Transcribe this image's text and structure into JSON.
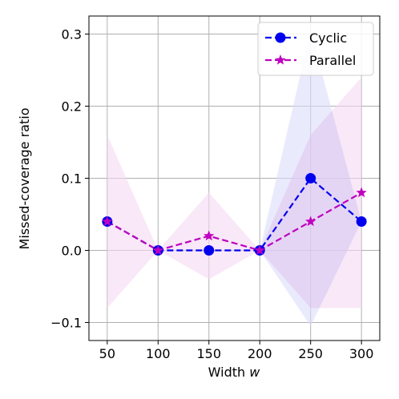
{
  "chart_data": {
    "type": "line",
    "xlabel": "Width ",
    "xlabel_var": "w",
    "ylabel": "Missed-coverage ratio",
    "xlim": [
      32,
      318
    ],
    "ylim": [
      -0.125,
      0.325
    ],
    "xticks": [
      50,
      100,
      150,
      200,
      250,
      300
    ],
    "xtick_labels": [
      "50",
      "100",
      "150",
      "200",
      "250",
      "300"
    ],
    "yticks": [
      -0.1,
      0.0,
      0.1,
      0.2,
      0.3
    ],
    "ytick_labels": [
      "−0.1",
      "0.0",
      "0.1",
      "0.2",
      "0.3"
    ],
    "grid": true,
    "legend_position": "top-right",
    "x": [
      50,
      100,
      150,
      200,
      250,
      300
    ],
    "series": [
      {
        "name": "Cyclic",
        "values": [
          0.04,
          0.0,
          0.0,
          0.0,
          0.1,
          0.04
        ],
        "band_lower": [
          0.04,
          0.0,
          0.0,
          0.0,
          -0.105,
          0.04
        ],
        "band_upper": [
          0.04,
          0.0,
          0.0,
          0.0,
          0.305,
          0.04
        ],
        "color": "#0000ee",
        "band_color": "#dcdcfc",
        "marker": "circle",
        "linestyle": "dashed"
      },
      {
        "name": "Parallel",
        "values": [
          0.04,
          0.0,
          0.02,
          0.0,
          0.04,
          0.08
        ],
        "band_lower": [
          -0.08,
          0.0,
          -0.04,
          0.0,
          -0.08,
          -0.08
        ],
        "band_upper": [
          0.16,
          0.0,
          0.08,
          0.0,
          0.16,
          0.24
        ],
        "color": "#bf00bf",
        "band_color": "#f5d9f2",
        "marker": "star",
        "linestyle": "dashed"
      }
    ],
    "overlap_color": "#cbbaee"
  }
}
